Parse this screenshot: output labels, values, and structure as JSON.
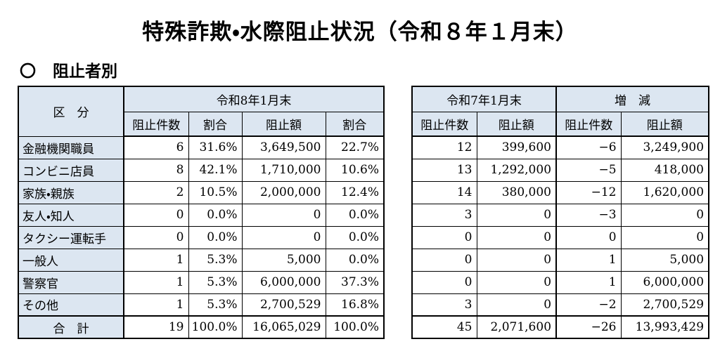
{
  "title": "特殊詐欺・水際阻止状況（令和８年１月末）",
  "section": {
    "marker": "〇",
    "label": "阻止者別"
  },
  "colors": {
    "header_bg": "#dce6f1",
    "border": "#000000",
    "text": "#000000",
    "page_bg": "#ffffff"
  },
  "left_table": {
    "corner_header": "区　分",
    "group_header": "令和8年1月末",
    "sub_headers": [
      "阻止件数",
      "割合",
      "阻止額",
      "割合"
    ],
    "rows": [
      {
        "label": "金融機関職員",
        "values": [
          "6",
          "31.6%",
          "3,649,500",
          "22.7%"
        ]
      },
      {
        "label": "コンビニ店員",
        "values": [
          "8",
          "42.1%",
          "1,710,000",
          "10.6%"
        ]
      },
      {
        "label": "家族・親族",
        "values": [
          "2",
          "10.5%",
          "2,000,000",
          "12.4%"
        ]
      },
      {
        "label": "友人・知人",
        "values": [
          "0",
          "0.0%",
          "0",
          "0.0%"
        ]
      },
      {
        "label": "タクシー運転手",
        "values": [
          "0",
          "0.0%",
          "0",
          "0.0%"
        ]
      },
      {
        "label": "一般人",
        "values": [
          "1",
          "5.3%",
          "5,000",
          "0.0%"
        ]
      },
      {
        "label": "警察官",
        "values": [
          "1",
          "5.3%",
          "6,000,000",
          "37.3%"
        ]
      },
      {
        "label": "その他",
        "values": [
          "1",
          "5.3%",
          "2,700,529",
          "16.8%"
        ]
      }
    ],
    "total_row": {
      "label": "合　計",
      "values": [
        "19",
        "100.0%",
        "16,065,029",
        "100.0%"
      ]
    }
  },
  "right_table": {
    "groups": [
      {
        "header": "令和7年1月末",
        "sub_headers": [
          "阻止件数",
          "阻止額"
        ]
      },
      {
        "header": "増　減",
        "sub_headers": [
          "阻止件数",
          "阻止額"
        ]
      }
    ],
    "rows": [
      {
        "values": [
          "12",
          "399,600",
          "−6",
          "3,249,900"
        ]
      },
      {
        "values": [
          "13",
          "1,292,000",
          "−5",
          "418,000"
        ]
      },
      {
        "values": [
          "14",
          "380,000",
          "−12",
          "1,620,000"
        ]
      },
      {
        "values": [
          "3",
          "0",
          "−3",
          "0"
        ]
      },
      {
        "values": [
          "0",
          "0",
          "0",
          "0"
        ]
      },
      {
        "values": [
          "0",
          "0",
          "1",
          "5,000"
        ]
      },
      {
        "values": [
          "0",
          "0",
          "1",
          "6,000,000"
        ]
      },
      {
        "values": [
          "3",
          "0",
          "−2",
          "2,700,529"
        ]
      }
    ],
    "total_row": {
      "values": [
        "45",
        "2,071,600",
        "−26",
        "13,993,429"
      ]
    }
  }
}
